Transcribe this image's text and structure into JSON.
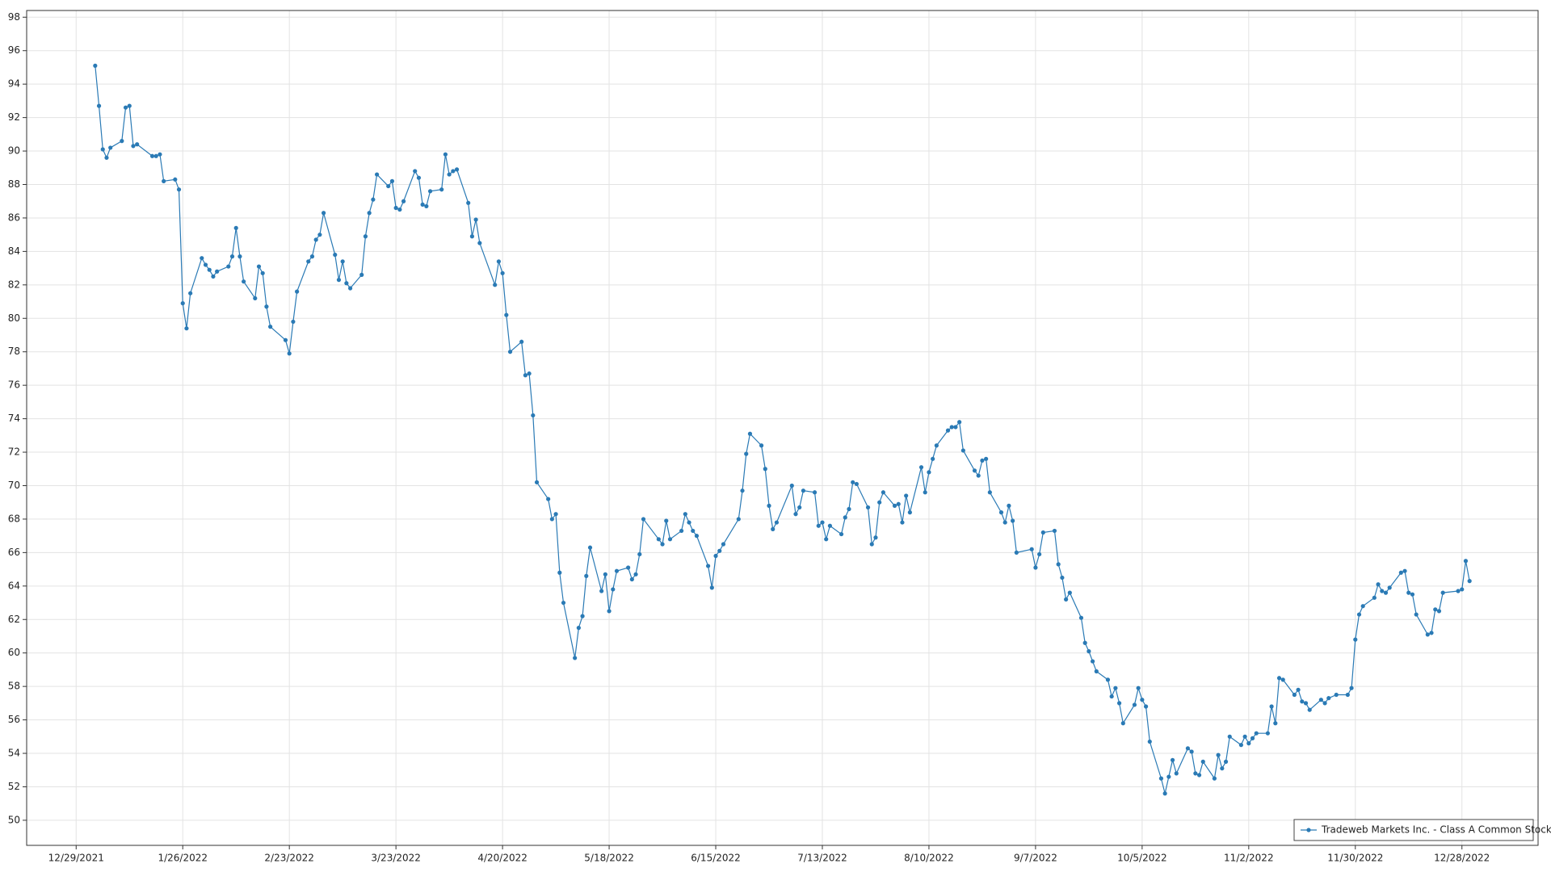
{
  "chart_data": {
    "type": "line",
    "x": [
      "1/3/2022",
      "1/4/2022",
      "1/5/2022",
      "1/6/2022",
      "1/7/2022",
      "1/10/2022",
      "1/11/2022",
      "1/12/2022",
      "1/13/2022",
      "1/14/2022",
      "1/18/2022",
      "1/19/2022",
      "1/20/2022",
      "1/21/2022",
      "1/24/2022",
      "1/25/2022",
      "1/26/2022",
      "1/27/2022",
      "1/28/2022",
      "1/31/2022",
      "2/1/2022",
      "2/2/2022",
      "2/3/2022",
      "2/4/2022",
      "2/7/2022",
      "2/8/2022",
      "2/9/2022",
      "2/10/2022",
      "2/11/2022",
      "2/14/2022",
      "2/15/2022",
      "2/16/2022",
      "2/17/2022",
      "2/18/2022",
      "2/22/2022",
      "2/23/2022",
      "2/24/2022",
      "2/25/2022",
      "2/28/2022",
      "3/1/2022",
      "3/2/2022",
      "3/3/2022",
      "3/4/2022",
      "3/7/2022",
      "3/8/2022",
      "3/9/2022",
      "3/10/2022",
      "3/11/2022",
      "3/14/2022",
      "3/15/2022",
      "3/16/2022",
      "3/17/2022",
      "3/18/2022",
      "3/21/2022",
      "3/22/2022",
      "3/23/2022",
      "3/24/2022",
      "3/25/2022",
      "3/28/2022",
      "3/29/2022",
      "3/30/2022",
      "3/31/2022",
      "4/1/2022",
      "4/4/2022",
      "4/5/2022",
      "4/6/2022",
      "4/7/2022",
      "4/8/2022",
      "4/11/2022",
      "4/12/2022",
      "4/13/2022",
      "4/14/2022",
      "4/18/2022",
      "4/19/2022",
      "4/20/2022",
      "4/21/2022",
      "4/22/2022",
      "4/25/2022",
      "4/26/2022",
      "4/27/2022",
      "4/28/2022",
      "4/29/2022",
      "5/2/2022",
      "5/3/2022",
      "5/4/2022",
      "5/5/2022",
      "5/6/2022",
      "5/9/2022",
      "5/10/2022",
      "5/11/2022",
      "5/12/2022",
      "5/13/2022",
      "5/16/2022",
      "5/17/2022",
      "5/18/2022",
      "5/19/2022",
      "5/20/2022",
      "5/23/2022",
      "5/24/2022",
      "5/25/2022",
      "5/26/2022",
      "5/27/2022",
      "5/31/2022",
      "6/1/2022",
      "6/2/2022",
      "6/3/2022",
      "6/6/2022",
      "6/7/2022",
      "6/8/2022",
      "6/9/2022",
      "6/10/2022",
      "6/13/2022",
      "6/14/2022",
      "6/15/2022",
      "6/16/2022",
      "6/17/2022",
      "6/21/2022",
      "6/22/2022",
      "6/23/2022",
      "6/24/2022",
      "6/27/2022",
      "6/28/2022",
      "6/29/2022",
      "6/30/2022",
      "7/1/2022",
      "7/5/2022",
      "7/6/2022",
      "7/7/2022",
      "7/8/2022",
      "7/11/2022",
      "7/12/2022",
      "7/13/2022",
      "7/14/2022",
      "7/15/2022",
      "7/18/2022",
      "7/19/2022",
      "7/20/2022",
      "7/21/2022",
      "7/22/2022",
      "7/25/2022",
      "7/26/2022",
      "7/27/2022",
      "7/28/2022",
      "7/29/2022",
      "8/1/2022",
      "8/2/2022",
      "8/3/2022",
      "8/4/2022",
      "8/5/2022",
      "8/8/2022",
      "8/9/2022",
      "8/10/2022",
      "8/11/2022",
      "8/12/2022",
      "8/15/2022",
      "8/16/2022",
      "8/17/2022",
      "8/18/2022",
      "8/19/2022",
      "8/22/2022",
      "8/23/2022",
      "8/24/2022",
      "8/25/2022",
      "8/26/2022",
      "8/29/2022",
      "8/30/2022",
      "8/31/2022",
      "9/1/2022",
      "9/2/2022",
      "9/6/2022",
      "9/7/2022",
      "9/8/2022",
      "9/9/2022",
      "9/12/2022",
      "9/13/2022",
      "9/14/2022",
      "9/15/2022",
      "9/16/2022",
      "9/19/2022",
      "9/20/2022",
      "9/21/2022",
      "9/22/2022",
      "9/23/2022",
      "9/26/2022",
      "9/27/2022",
      "9/28/2022",
      "9/29/2022",
      "9/30/2022",
      "10/3/2022",
      "10/4/2022",
      "10/5/2022",
      "10/6/2022",
      "10/7/2022",
      "10/10/2022",
      "10/11/2022",
      "10/12/2022",
      "10/13/2022",
      "10/14/2022",
      "10/17/2022",
      "10/18/2022",
      "10/19/2022",
      "10/20/2022",
      "10/21/2022",
      "10/24/2022",
      "10/25/2022",
      "10/26/2022",
      "10/27/2022",
      "10/28/2022",
      "10/31/2022",
      "11/1/2022",
      "11/2/2022",
      "11/3/2022",
      "11/4/2022",
      "11/7/2022",
      "11/8/2022",
      "11/9/2022",
      "11/10/2022",
      "11/11/2022",
      "11/14/2022",
      "11/15/2022",
      "11/16/2022",
      "11/17/2022",
      "11/18/2022",
      "11/21/2022",
      "11/22/2022",
      "11/23/2022",
      "11/25/2022",
      "11/28/2022",
      "11/29/2022",
      "11/30/2022",
      "12/1/2022",
      "12/2/2022",
      "12/5/2022",
      "12/6/2022",
      "12/7/2022",
      "12/8/2022",
      "12/9/2022",
      "12/12/2022",
      "12/13/2022",
      "12/14/2022",
      "12/15/2022",
      "12/16/2022",
      "12/19/2022",
      "12/20/2022",
      "12/21/2022",
      "12/22/2022",
      "12/23/2022",
      "12/27/2022",
      "12/28/2022",
      "12/29/2022",
      "12/30/2022"
    ],
    "series": [
      {
        "name": "Tradeweb Markets Inc. - Class A Common Stock",
        "color": "#2a7ab5",
        "values": [
          95.1,
          92.7,
          90.1,
          89.6,
          90.2,
          90.6,
          92.6,
          92.7,
          90.3,
          90.4,
          89.7,
          89.7,
          89.8,
          88.2,
          88.3,
          87.7,
          80.9,
          79.4,
          81.5,
          83.6,
          83.2,
          82.9,
          82.5,
          82.8,
          83.1,
          83.7,
          85.4,
          83.7,
          82.2,
          81.2,
          83.1,
          82.7,
          80.7,
          79.5,
          78.7,
          77.9,
          79.8,
          81.6,
          83.4,
          83.7,
          84.7,
          85.0,
          86.3,
          83.8,
          82.3,
          83.4,
          82.1,
          81.8,
          82.6,
          84.9,
          86.3,
          87.1,
          88.6,
          87.9,
          88.2,
          86.6,
          86.5,
          87.0,
          88.8,
          88.4,
          86.8,
          86.7,
          87.6,
          87.7,
          89.8,
          88.6,
          88.8,
          88.9,
          86.9,
          84.9,
          85.9,
          84.5,
          82.0,
          83.4,
          82.7,
          80.2,
          78.0,
          78.6,
          76.6,
          76.7,
          74.2,
          70.2,
          69.2,
          68.0,
          68.3,
          64.8,
          63.0,
          59.7,
          61.5,
          62.2,
          64.6,
          66.3,
          63.7,
          64.7,
          62.5,
          63.8,
          64.9,
          65.1,
          64.4,
          64.7,
          65.9,
          68.0,
          66.8,
          66.5,
          67.9,
          66.8,
          67.3,
          68.3,
          67.8,
          67.3,
          67.0,
          65.2,
          63.9,
          65.8,
          66.1,
          66.5,
          68.0,
          69.7,
          71.9,
          73.1,
          72.4,
          71.0,
          68.8,
          67.4,
          67.8,
          70.0,
          68.3,
          68.7,
          69.7,
          69.6,
          67.6,
          67.8,
          66.8,
          67.6,
          67.1,
          68.1,
          68.6,
          70.2,
          70.1,
          68.7,
          66.5,
          66.9,
          69.0,
          69.6,
          68.8,
          68.9,
          67.8,
          69.4,
          68.4,
          71.1,
          69.6,
          70.8,
          71.6,
          72.4,
          73.3,
          73.5,
          73.5,
          73.8,
          72.1,
          70.9,
          70.6,
          71.5,
          71.6,
          69.6,
          68.4,
          67.8,
          68.8,
          67.9,
          66.0,
          66.2,
          65.1,
          65.9,
          67.2,
          67.3,
          65.3,
          64.5,
          63.2,
          63.6,
          62.1,
          60.6,
          60.1,
          59.5,
          58.9,
          58.4,
          57.4,
          57.9,
          57.0,
          55.8,
          56.9,
          57.9,
          57.2,
          56.8,
          54.7,
          52.5,
          51.6,
          52.6,
          53.6,
          52.8,
          54.3,
          54.1,
          52.8,
          52.7,
          53.5,
          52.5,
          53.9,
          53.1,
          53.5,
          55.0,
          54.5,
          55.0,
          54.6,
          54.9,
          55.2,
          55.2,
          56.8,
          55.8,
          58.5,
          58.4,
          57.5,
          57.8,
          57.1,
          57.0,
          56.6,
          57.2,
          57.0,
          57.3,
          57.5,
          57.5,
          57.9,
          60.8,
          62.3,
          62.8,
          63.3,
          64.1,
          63.7,
          63.6,
          63.9,
          64.8,
          64.9,
          63.6,
          63.5,
          62.3,
          61.1,
          61.2,
          62.6,
          62.5,
          63.6,
          63.7,
          63.8,
          65.5,
          64.3
        ]
      }
    ],
    "xlim": [
      "12/16/2021",
      "1/17/2023"
    ],
    "xticks": [
      "12/29/2021",
      "1/26/2022",
      "2/23/2022",
      "3/23/2022",
      "4/20/2022",
      "5/18/2022",
      "6/15/2022",
      "7/13/2022",
      "8/10/2022",
      "9/7/2022",
      "10/5/2022",
      "11/2/2022",
      "11/30/2022",
      "12/28/2022"
    ],
    "ylim": [
      48.5,
      98.4
    ],
    "yticks": [
      50,
      52,
      54,
      56,
      58,
      60,
      62,
      64,
      66,
      68,
      70,
      72,
      74,
      76,
      78,
      80,
      82,
      84,
      86,
      88,
      90,
      92,
      94,
      96,
      98
    ],
    "grid": true,
    "legend": "lower right"
  }
}
